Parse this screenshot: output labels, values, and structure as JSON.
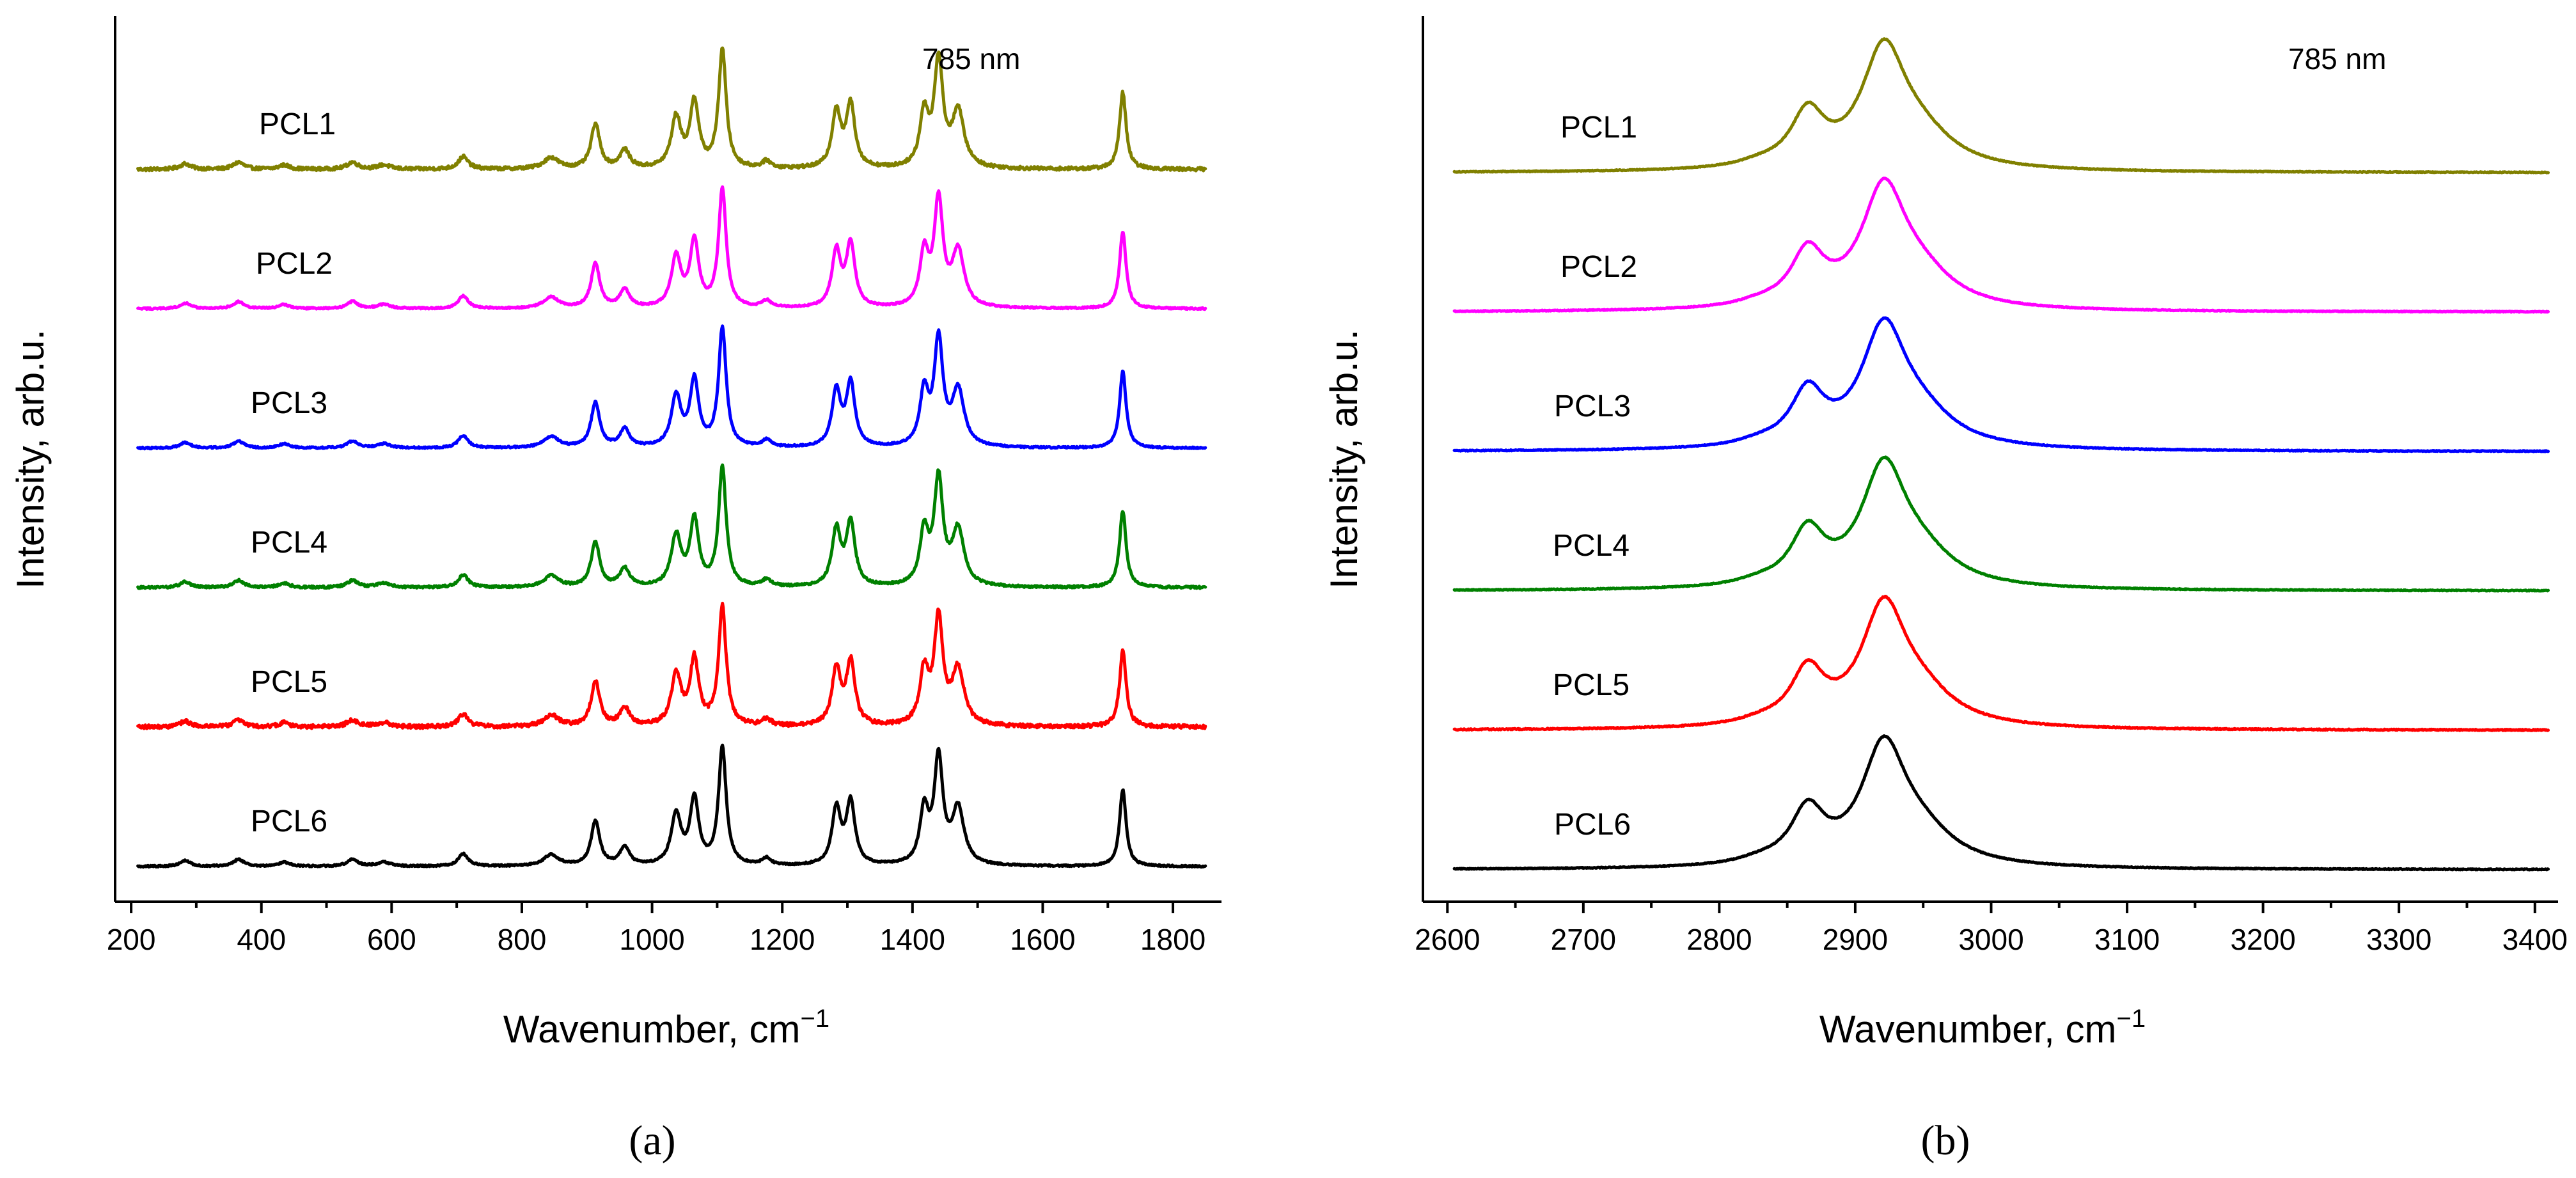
{
  "chart_data": [
    {
      "id": "a",
      "type": "line",
      "title": "",
      "panel_label": "(a)",
      "annotation": "785 nm",
      "xlabel": "Wavenumber, cm",
      "xlabel_sup": "−1",
      "ylabel": "Intensity, arb.u.",
      "xlim": [
        195,
        1850
      ],
      "xticks": [
        200,
        400,
        600,
        800,
        1000,
        1200,
        1400,
        1600,
        1800
      ],
      "xtick_labels": [
        "200",
        "400",
        "600",
        "800",
        "1000",
        "1200",
        "1400",
        "1600",
        "1800"
      ],
      "grid": false,
      "y_offset_units": true,
      "series": [
        {
          "name": "PCL1",
          "color": "#808000",
          "offset": 5,
          "noise": 0.012
        },
        {
          "name": "PCL2",
          "color": "#ff00ff",
          "offset": 4,
          "noise": 0.006
        },
        {
          "name": "PCL3",
          "color": "#0000ff",
          "offset": 3,
          "noise": 0.006
        },
        {
          "name": "PCL4",
          "color": "#008000",
          "offset": 2,
          "noise": 0.008
        },
        {
          "name": "PCL5",
          "color": "#ff0000",
          "offset": 1,
          "noise": 0.014
        },
        {
          "name": "PCL6",
          "color": "#000000",
          "offset": 0,
          "noise": 0.006
        }
      ],
      "peaks": [
        {
          "x": 283,
          "h": 0.04,
          "w": 10
        },
        {
          "x": 365,
          "h": 0.05,
          "w": 10
        },
        {
          "x": 435,
          "h": 0.03,
          "w": 10
        },
        {
          "x": 540,
          "h": 0.05,
          "w": 10
        },
        {
          "x": 588,
          "h": 0.03,
          "w": 12
        },
        {
          "x": 710,
          "h": 0.09,
          "w": 9
        },
        {
          "x": 845,
          "h": 0.08,
          "w": 14
        },
        {
          "x": 913,
          "h": 0.32,
          "w": 8
        },
        {
          "x": 958,
          "h": 0.13,
          "w": 9
        },
        {
          "x": 1037,
          "h": 0.36,
          "w": 9
        },
        {
          "x": 1065,
          "h": 0.47,
          "w": 8
        },
        {
          "x": 1108,
          "h": 0.85,
          "w": 7
        },
        {
          "x": 1176,
          "h": 0.05,
          "w": 8
        },
        {
          "x": 1283,
          "h": 0.4,
          "w": 8
        },
        {
          "x": 1305,
          "h": 0.45,
          "w": 8
        },
        {
          "x": 1418,
          "h": 0.38,
          "w": 8
        },
        {
          "x": 1440,
          "h": 0.75,
          "w": 8
        },
        {
          "x": 1470,
          "h": 0.4,
          "w": 11
        },
        {
          "x": 1723,
          "h": 0.55,
          "w": 6
        }
      ]
    },
    {
      "id": "b",
      "type": "line",
      "title": "",
      "panel_label": "(b)",
      "annotation": "785 nm",
      "xlabel": "Wavenumber, cm",
      "xlabel_sup": "−1",
      "ylabel": "Intensity, arb.u.",
      "xlim": [
        2590,
        3410
      ],
      "xticks": [
        2600,
        2700,
        2800,
        2900,
        3000,
        3100,
        3200,
        3300,
        3400
      ],
      "xtick_labels": [
        "2600",
        "2700",
        "2800",
        "2900",
        "3000",
        "3100",
        "3200",
        "3300",
        "3400"
      ],
      "grid": false,
      "y_offset_units": true,
      "series": [
        {
          "name": "PCL1",
          "color": "#808000",
          "offset": 5,
          "noise": 0.003
        },
        {
          "name": "PCL2",
          "color": "#ff00ff",
          "offset": 4,
          "noise": 0.003
        },
        {
          "name": "PCL3",
          "color": "#0000ff",
          "offset": 3,
          "noise": 0.003
        },
        {
          "name": "PCL4",
          "color": "#008000",
          "offset": 2,
          "noise": 0.003
        },
        {
          "name": "PCL5",
          "color": "#ff0000",
          "offset": 1,
          "noise": 0.004
        },
        {
          "name": "PCL6",
          "color": "#000000",
          "offset": 0,
          "noise": 0.003
        }
      ],
      "peaks": [
        {
          "x": 2865,
          "h": 0.38,
          "w": 15
        },
        {
          "x": 2921,
          "h": 0.82,
          "w": 20
        },
        {
          "x": 2948,
          "h": 0.2,
          "w": 30
        },
        {
          "x": 2830,
          "h": 0.03,
          "w": 20
        }
      ]
    }
  ]
}
